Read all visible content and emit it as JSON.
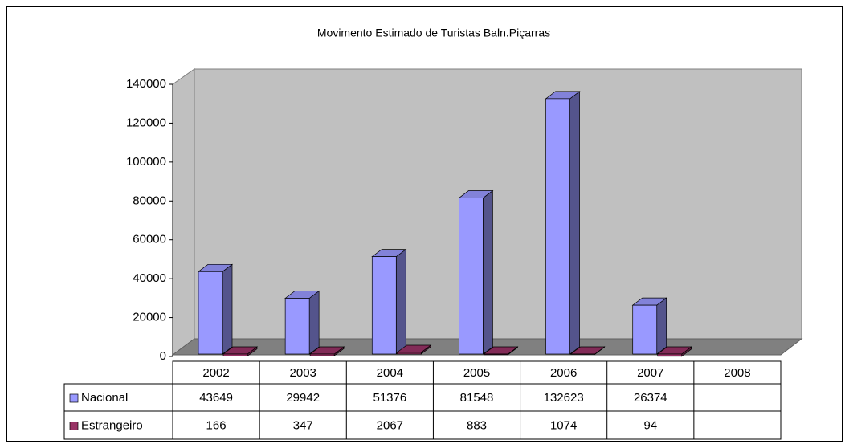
{
  "chart_data": {
    "type": "bar",
    "title": "Movimento Estimado de Turistas Baln.Piçarras",
    "categories": [
      "2002",
      "2003",
      "2004",
      "2005",
      "2006",
      "2007",
      "2008"
    ],
    "series": [
      {
        "name": "Nacional",
        "color": "#9999ff",
        "values": [
          43649,
          29942,
          51376,
          81548,
          132623,
          26374,
          null
        ]
      },
      {
        "name": "Estrangeiro",
        "color": "#993366",
        "values": [
          166,
          347,
          2067,
          883,
          1074,
          94,
          null
        ]
      }
    ],
    "ylim": [
      0,
      140000
    ],
    "yticks": [
      0,
      20000,
      40000,
      60000,
      80000,
      100000,
      120000,
      140000
    ]
  }
}
